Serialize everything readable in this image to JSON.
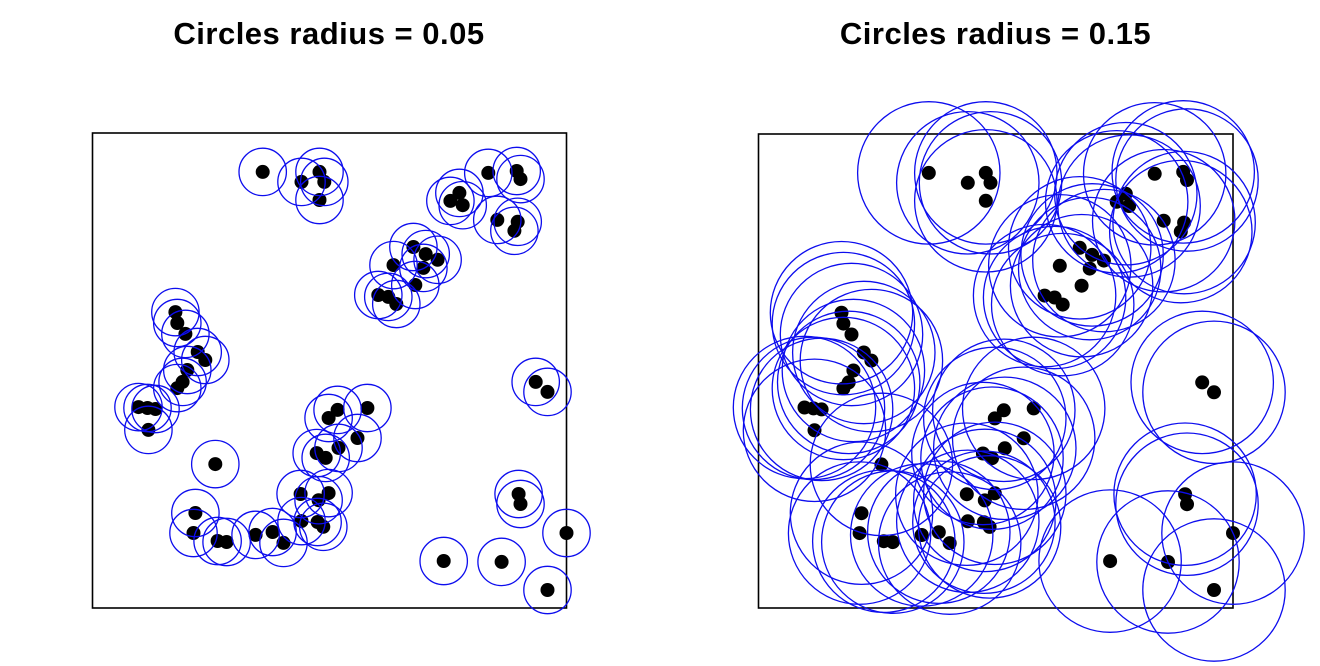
{
  "figure": {
    "background": "#ffffff",
    "description": "Two side-by-side unit-square point pattern plots; the same 64 points are shown in each panel with a blue circle of fixed radius drawn around every point."
  },
  "chart_data": {
    "type": "scatter",
    "xlim": [
      0,
      1
    ],
    "ylim": [
      0,
      1
    ],
    "grid": false,
    "axes_hidden": true,
    "point_color": "#000000",
    "point_radius_px": 7,
    "circle_color": "#0d0dee",
    "box_color": "#000000",
    "panels": [
      {
        "title": "Circles radius = 0.05",
        "circle_radius": 0.05
      },
      {
        "title": "Circles radius = 0.15",
        "circle_radius": 0.15
      }
    ],
    "x": [
      0.359,
      0.441,
      0.479,
      0.489,
      0.479,
      0.835,
      0.895,
      0.903,
      0.774,
      0.755,
      0.781,
      0.854,
      0.897,
      0.89,
      0.677,
      0.703,
      0.728,
      0.635,
      0.698,
      0.681,
      0.603,
      0.624,
      0.641,
      0.175,
      0.179,
      0.196,
      0.222,
      0.238,
      0.2,
      0.19,
      0.179,
      0.097,
      0.116,
      0.133,
      0.118,
      0.259,
      0.517,
      0.498,
      0.58,
      0.559,
      0.519,
      0.473,
      0.492,
      0.439,
      0.498,
      0.477,
      0.441,
      0.475,
      0.487,
      0.217,
      0.213,
      0.264,
      0.283,
      0.344,
      0.38,
      0.403,
      0.935,
      0.96,
      0.899,
      0.903,
      1.0,
      0.741,
      0.863,
      0.96
    ],
    "y": [
      0.918,
      0.897,
      0.918,
      0.897,
      0.859,
      0.916,
      0.92,
      0.903,
      0.874,
      0.857,
      0.848,
      0.817,
      0.813,
      0.794,
      0.76,
      0.745,
      0.733,
      0.722,
      0.716,
      0.68,
      0.659,
      0.655,
      0.64,
      0.623,
      0.6,
      0.577,
      0.539,
      0.522,
      0.501,
      0.476,
      0.463,
      0.423,
      0.421,
      0.419,
      0.375,
      0.303,
      0.417,
      0.4,
      0.421,
      0.358,
      0.337,
      0.326,
      0.316,
      0.24,
      0.242,
      0.227,
      0.183,
      0.181,
      0.171,
      0.2,
      0.158,
      0.141,
      0.139,
      0.154,
      0.16,
      0.137,
      0.476,
      0.455,
      0.24,
      0.219,
      0.158,
      0.099,
      0.097,
      0.038
    ]
  }
}
